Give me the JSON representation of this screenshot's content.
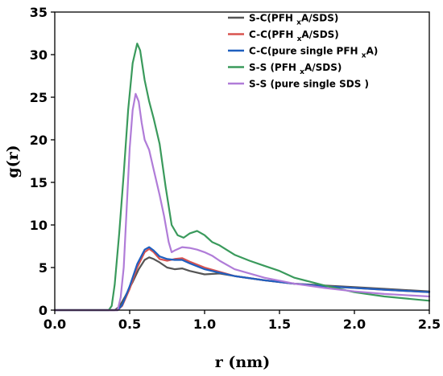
{
  "chart_data": {
    "type": "line",
    "xlabel": "r (nm)",
    "ylabel": "g(r)",
    "xlim": [
      0,
      2.5
    ],
    "ylim": [
      0,
      35
    ],
    "xticks": [
      "0.0",
      "0.5",
      "1.0",
      "1.5",
      "2.0",
      "2.5"
    ],
    "yticks": [
      "0",
      "5",
      "10",
      "15",
      "20",
      "25",
      "30",
      "35"
    ],
    "grid": false,
    "legend_position": "top-right",
    "series": [
      {
        "name": "S-C(PFH xA/SDS)",
        "legend": {
          "pre": "S-C(PFH ",
          "sub": "x",
          "post": "A/SDS)"
        },
        "color": "#555555",
        "x": [
          0,
          0.4,
          0.43,
          0.47,
          0.52,
          0.56,
          0.6,
          0.63,
          0.66,
          0.7,
          0.75,
          0.8,
          0.85,
          0.9,
          1.0,
          1.1,
          1.2,
          1.4,
          1.6,
          1.8,
          2.0,
          2.2,
          2.5
        ],
        "y": [
          0,
          0,
          0.4,
          1.6,
          3.3,
          4.8,
          5.9,
          6.2,
          6.0,
          5.6,
          5.0,
          4.8,
          4.9,
          4.6,
          4.2,
          4.3,
          4.0,
          3.5,
          3.1,
          2.9,
          2.7,
          2.5,
          2.2
        ]
      },
      {
        "name": "C-C(PFH xA/SDS)",
        "legend": {
          "pre": "C-C(PFH ",
          "sub": "x",
          "post": "A/SDS)"
        },
        "color": "#d9534f",
        "x": [
          0,
          0.42,
          0.45,
          0.5,
          0.55,
          0.6,
          0.63,
          0.66,
          0.7,
          0.75,
          0.8,
          0.85,
          0.9,
          1.0,
          1.1,
          1.2,
          1.4,
          1.6,
          1.8,
          2.0,
          2.2,
          2.5
        ],
        "y": [
          0,
          0,
          0.5,
          2.5,
          5.0,
          6.8,
          7.2,
          6.8,
          6.0,
          5.8,
          6.0,
          6.1,
          5.7,
          5.0,
          4.5,
          4.0,
          3.5,
          3.1,
          2.8,
          2.6,
          2.4,
          2.1
        ]
      },
      {
        "name": "C-C(pure single PFH xA)",
        "legend": {
          "pre": "C-C(pure single PFH ",
          "sub": "x",
          "post": "A)"
        },
        "color": "#1f5fbf",
        "x": [
          0,
          0.42,
          0.45,
          0.5,
          0.55,
          0.6,
          0.63,
          0.66,
          0.7,
          0.75,
          0.8,
          0.85,
          0.9,
          1.0,
          1.1,
          1.2,
          1.4,
          1.6,
          1.8,
          2.0,
          2.2,
          2.5
        ],
        "y": [
          0,
          0,
          0.6,
          2.8,
          5.4,
          7.1,
          7.4,
          7.0,
          6.3,
          6.0,
          5.9,
          5.9,
          5.5,
          4.8,
          4.4,
          4.0,
          3.5,
          3.1,
          2.8,
          2.6,
          2.4,
          2.1
        ]
      },
      {
        "name": "S-S (PFH xA/SDS)",
        "legend": {
          "pre": "S-S (PFH ",
          "sub": "x",
          "post": "A/SDS)"
        },
        "color": "#3a9a5c",
        "x": [
          0,
          0.36,
          0.38,
          0.4,
          0.43,
          0.46,
          0.49,
          0.52,
          0.55,
          0.57,
          0.6,
          0.63,
          0.66,
          0.7,
          0.74,
          0.78,
          0.82,
          0.86,
          0.9,
          0.95,
          1.0,
          1.05,
          1.1,
          1.2,
          1.3,
          1.4,
          1.5,
          1.6,
          1.8,
          2.0,
          2.2,
          2.5
        ],
        "y": [
          0,
          0,
          0.5,
          3.0,
          9.0,
          16.0,
          23.5,
          29.0,
          31.3,
          30.5,
          27.0,
          24.5,
          22.5,
          19.5,
          14.5,
          10.0,
          8.8,
          8.5,
          9.0,
          9.3,
          8.8,
          8.0,
          7.6,
          6.5,
          5.8,
          5.2,
          4.6,
          3.8,
          2.9,
          2.1,
          1.6,
          1.1
        ]
      },
      {
        "name": "S-S (pure single SDS )",
        "legend": {
          "pre": "S-S (pure single SDS )",
          "sub": "",
          "post": ""
        },
        "color": "#b07cd8",
        "x": [
          0,
          0.42,
          0.44,
          0.46,
          0.48,
          0.5,
          0.52,
          0.54,
          0.56,
          0.58,
          0.6,
          0.63,
          0.66,
          0.7,
          0.73,
          0.76,
          0.78,
          0.8,
          0.85,
          0.9,
          0.95,
          1.0,
          1.05,
          1.1,
          1.2,
          1.4,
          1.6,
          1.8,
          2.0,
          2.2,
          2.5
        ],
        "y": [
          0,
          0,
          1.5,
          5.0,
          12.0,
          19.0,
          23.5,
          25.4,
          24.5,
          22.0,
          20.0,
          18.8,
          16.5,
          13.5,
          11.0,
          8.0,
          6.8,
          7.0,
          7.4,
          7.3,
          7.1,
          6.8,
          6.4,
          5.8,
          4.8,
          3.8,
          3.1,
          2.6,
          2.2,
          1.9,
          1.6
        ]
      }
    ]
  }
}
